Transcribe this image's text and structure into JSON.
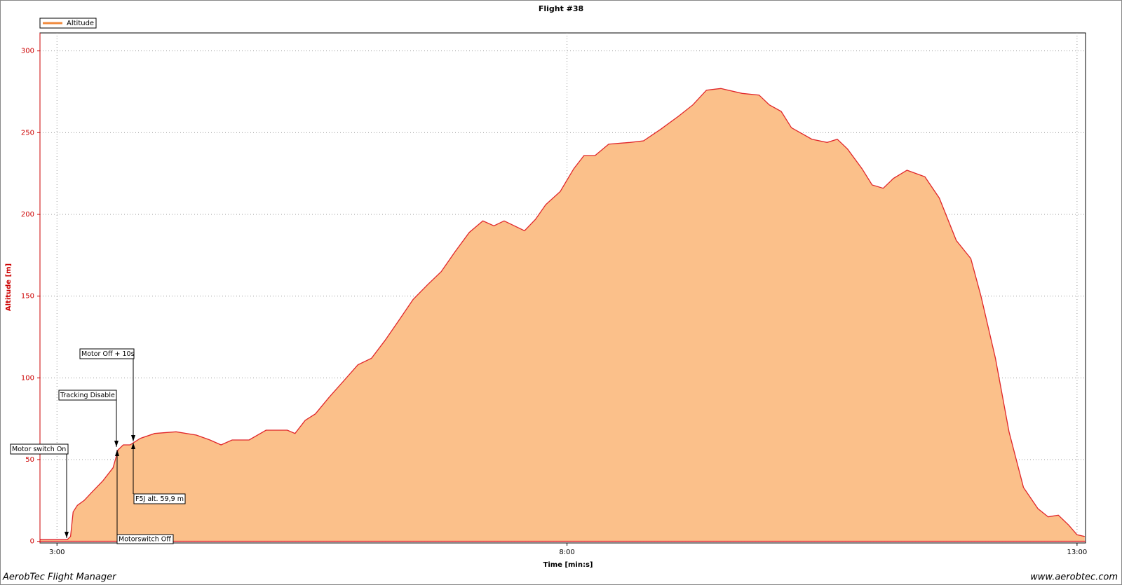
{
  "chart_data": {
    "type": "area",
    "title": "Flight #38",
    "xlabel": "Time [min:s]",
    "ylabel": "Altitude [m]",
    "footer_left": "AerobTec Flight Manager",
    "footer_right": "www.aerobtec.com",
    "xlim": [
      170,
      785
    ],
    "xticks": [
      {
        "value": 180,
        "label": "3:00"
      },
      {
        "value": 480,
        "label": "8:00"
      },
      {
        "value": 780,
        "label": "13:00"
      }
    ],
    "ylim": [
      -1,
      311
    ],
    "yticks": [
      0,
      50,
      100,
      150,
      200,
      250,
      300
    ],
    "grid": true,
    "legend": "top-left",
    "x": [
      170,
      186,
      188,
      189.5,
      192,
      196,
      200.5,
      207,
      213,
      216,
      219,
      223,
      229,
      237.5,
      250,
      262,
      270,
      276.5,
      283,
      293,
      303,
      315.5,
      320,
      326,
      332,
      340,
      348.5,
      357,
      365,
      373,
      381,
      389.5,
      398,
      406,
      414,
      422.5,
      430.5,
      437,
      443,
      449,
      455,
      461.5,
      467.5,
      476,
      484,
      490,
      496.5,
      504.5,
      517,
      525,
      535,
      545.5,
      554,
      562,
      570.5,
      583,
      593,
      599,
      606,
      612,
      624,
      633,
      639,
      645,
      653.5,
      659.5,
      666,
      672,
      680,
      690.5,
      699,
      709,
      717.5,
      723.5,
      732,
      740,
      748.5,
      757,
      763,
      769,
      775,
      780,
      784.5
    ],
    "series": [
      {
        "name": "Altitude",
        "color": "#e0262a",
        "fill": "#fbc08a",
        "legend_color": "#f08a3c",
        "values": [
          1,
          1,
          3,
          18,
          22,
          25,
          30,
          37,
          45,
          56,
          59,
          59,
          63,
          66,
          67,
          65,
          62,
          59,
          62,
          62,
          68,
          68,
          66,
          74,
          78,
          88,
          98,
          108,
          112,
          123,
          135,
          148,
          157,
          165,
          177,
          189,
          196,
          193,
          196,
          193,
          190,
          197,
          206,
          214,
          228,
          236,
          236,
          243,
          244,
          245,
          252,
          260,
          267,
          276,
          277,
          274,
          273,
          267,
          263,
          253,
          246,
          244,
          246,
          240,
          228,
          218,
          216,
          222,
          227,
          223,
          210,
          184,
          173,
          150,
          112,
          67,
          33,
          20,
          15,
          16,
          10,
          4,
          3
        ]
      }
    ],
    "annotations": [
      "Motor switch On",
      "Tracking Disable",
      "Motor Off + 10s",
      "F5J alt. 59,9 m",
      "Motorswitch Off"
    ]
  }
}
